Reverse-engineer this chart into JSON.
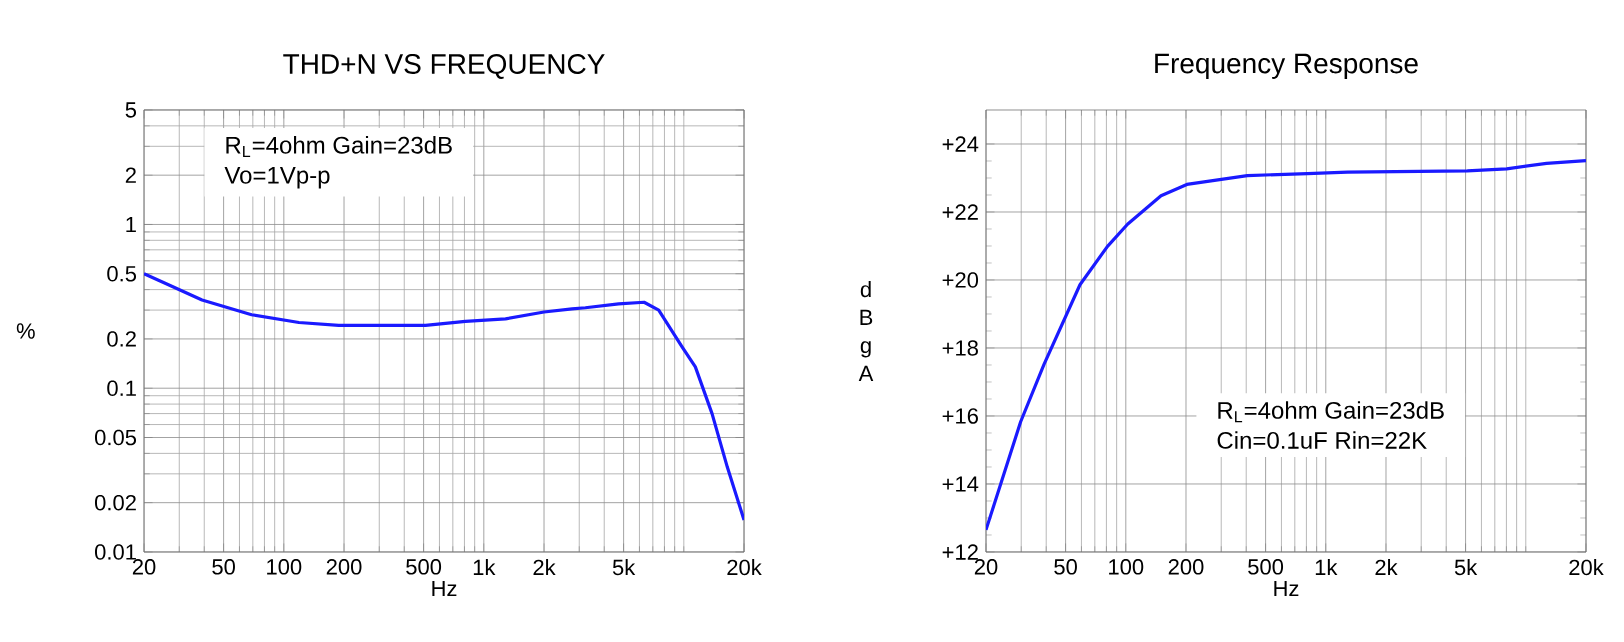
{
  "chart_data": [
    {
      "type": "line",
      "title": "THD+N VS FREQUENCY",
      "xlabel": "Hz",
      "ylabel": "%",
      "log": "xy",
      "grid": true,
      "color": "#1a1aff",
      "annotations": [
        "R$_{L}$=4ohm Gain=23dB",
        "Vo=1Vp-p"
      ],
      "x": [
        20,
        25.5,
        39,
        69,
        119,
        188,
        511,
        809,
        1284,
        2000,
        2760,
        3220,
        4720,
        6330,
        7490,
        9800,
        11420,
        13840,
        16500,
        20000
      ],
      "values": [
        0.5,
        0.437,
        0.346,
        0.281,
        0.252,
        0.242,
        0.242,
        0.256,
        0.265,
        0.292,
        0.305,
        0.31,
        0.327,
        0.335,
        0.3,
        0.179,
        0.135,
        0.07,
        0.033,
        0.0157
      ],
      "xlim": [
        20,
        20000
      ],
      "ylim": [
        0.01,
        5
      ],
      "xticks": [
        20,
        50,
        100,
        200,
        500,
        {
          "value": 1000,
          "label": "1k"
        },
        {
          "value": 2000,
          "label": "2k"
        },
        {
          "value": 5000,
          "label": "5k"
        },
        {
          "value": 20000,
          "label": "20k"
        }
      ],
      "yticks": [
        0.01,
        0.02,
        0.05,
        0.1,
        0.2,
        0.5,
        1,
        2,
        5
      ]
    },
    {
      "type": "line",
      "title": "Frequency Response",
      "xlabel": "Hz",
      "ylabel": "d B g A",
      "log": "x",
      "grid": true,
      "color": "#1a1aff",
      "annotations": [
        "R$_{L}$=4ohm Gain=23dB",
        "Cin=0.1uF Rin=22K"
      ],
      "x": [
        20,
        29.8,
        39,
        59,
        81,
        102,
        150,
        202,
        405,
        809,
        1284,
        5100,
        8020,
        12700,
        20000
      ],
      "values": [
        12.65,
        15.83,
        17.52,
        19.86,
        20.99,
        21.64,
        22.48,
        22.81,
        23.07,
        23.13,
        23.17,
        23.21,
        23.27,
        23.43,
        23.51
      ],
      "xlim": [
        20,
        20000
      ],
      "ylim": [
        12,
        25
      ],
      "xticks": [
        20,
        50,
        100,
        200,
        500,
        {
          "value": 1000,
          "label": "1k"
        },
        {
          "value": 2000,
          "label": "2k"
        },
        {
          "value": 5000,
          "label": "5k"
        },
        {
          "value": 20000,
          "label": "20k"
        }
      ],
      "yticks": [
        {
          "value": 12,
          "label": "+12"
        },
        {
          "value": 14,
          "label": "+14"
        },
        {
          "value": 16,
          "label": "+16"
        },
        {
          "value": 18,
          "label": "+18"
        },
        {
          "value": 20,
          "label": "+20"
        },
        {
          "value": 22,
          "label": "+22"
        },
        {
          "value": 24,
          "label": "+24"
        }
      ]
    }
  ]
}
